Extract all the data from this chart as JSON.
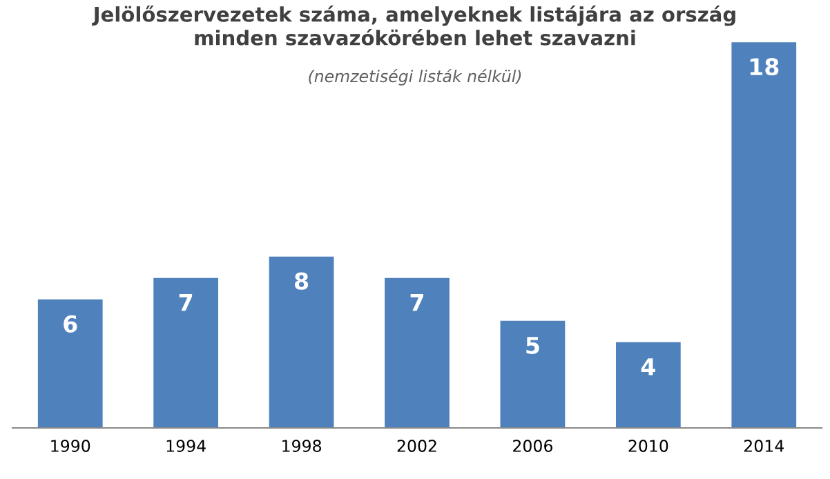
{
  "chart_data": {
    "type": "bar",
    "title": "Jelölőszervezetek száma, amelyeknek listájára az ország\nminden szavazókörében lehet szavazni",
    "subtitle": "(nemzetiségi listák nélkül)",
    "categories": [
      "1990",
      "1994",
      "1998",
      "2002",
      "2006",
      "2010",
      "2014"
    ],
    "values": [
      6,
      7,
      8,
      7,
      5,
      4,
      18
    ],
    "color": "#4f81bd",
    "data_labels": true,
    "tick_labels": "x"
  }
}
